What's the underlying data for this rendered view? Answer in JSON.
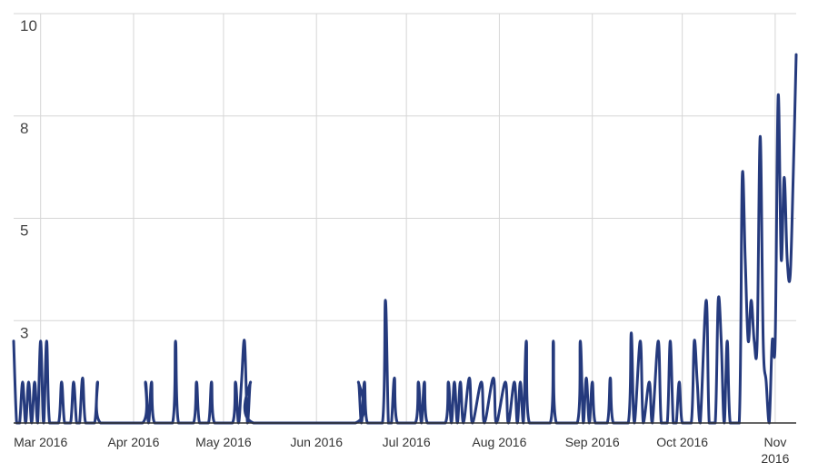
{
  "chart_data": {
    "type": "line",
    "title": "",
    "xlabel": "",
    "ylabel": "",
    "ylim": [
      0,
      10
    ],
    "grid": true,
    "legend": "none",
    "line_color": "#253a7d",
    "grid_color": "#d6d6d6",
    "y_ticks": [
      {
        "value": 0,
        "label": ""
      },
      {
        "value": 2.5,
        "label": "3"
      },
      {
        "value": 5,
        "label": "5"
      },
      {
        "value": 7.5,
        "label": "8"
      },
      {
        "value": 10,
        "label": "10"
      }
    ],
    "x_ticks": [
      {
        "date": "2016-03-01",
        "label": "Mar 2016",
        "label2": ""
      },
      {
        "date": "2016-04-01",
        "label": "Apr 2016",
        "label2": ""
      },
      {
        "date": "2016-05-01",
        "label": "May 2016",
        "label2": ""
      },
      {
        "date": "2016-06-01",
        "label": "Jun 2016",
        "label2": ""
      },
      {
        "date": "2016-07-01",
        "label": "Jul 2016",
        "label2": ""
      },
      {
        "date": "2016-08-01",
        "label": "Aug 2016",
        "label2": ""
      },
      {
        "date": "2016-09-01",
        "label": "Sep 2016",
        "label2": ""
      },
      {
        "date": "2016-10-01",
        "label": "Oct 2016",
        "label2": ""
      },
      {
        "date": "2016-11-01",
        "label": "Nov",
        "label2": "2016"
      }
    ],
    "x_range": [
      "2016-02-21",
      "2016-11-08"
    ],
    "series": [
      {
        "points": [
          [
            "2016-02-21",
            2
          ],
          [
            "2016-02-22",
            0
          ],
          [
            "2016-02-23",
            0
          ],
          [
            "2016-02-24",
            1
          ],
          [
            "2016-02-25",
            0
          ],
          [
            "2016-02-26",
            1
          ],
          [
            "2016-02-27",
            0
          ],
          [
            "2016-02-28",
            1
          ],
          [
            "2016-02-29",
            0
          ],
          [
            "2016-03-01",
            2
          ],
          [
            "2016-03-02",
            0
          ],
          [
            "2016-03-03",
            2
          ],
          [
            "2016-03-04",
            0
          ],
          [
            "2016-03-07",
            0
          ],
          [
            "2016-03-08",
            1
          ],
          [
            "2016-03-09",
            0
          ],
          [
            "2016-03-11",
            0
          ],
          [
            "2016-03-12",
            1
          ],
          [
            "2016-03-13",
            0
          ],
          [
            "2016-03-14",
            0
          ],
          [
            "2016-03-15",
            1.1
          ],
          [
            "2016-03-16",
            0
          ],
          [
            "2016-03-19",
            0
          ],
          [
            "2016-03-20",
            1
          ],
          [
            "2016-03-21",
            0
          ],
          [
            "2016-04-04",
            0
          ],
          [
            "2016-04-05",
            1
          ],
          [
            "2016-04-06",
            0
          ],
          [
            "2016-04-07",
            1
          ],
          [
            "2016-04-08",
            0
          ],
          [
            "2016-04-14",
            0
          ],
          [
            "2016-04-15",
            2
          ],
          [
            "2016-04-16",
            0
          ],
          [
            "2016-04-21",
            0
          ],
          [
            "2016-04-22",
            1
          ],
          [
            "2016-04-23",
            0
          ],
          [
            "2016-04-26",
            0
          ],
          [
            "2016-04-27",
            1
          ],
          [
            "2016-04-28",
            0
          ],
          [
            "2016-05-04",
            0
          ],
          [
            "2016-05-05",
            1
          ],
          [
            "2016-05-06",
            0
          ],
          [
            "2016-05-07",
            1
          ],
          [
            "2016-05-08",
            2
          ],
          [
            "2016-05-09",
            0
          ],
          [
            "2016-05-10",
            1
          ],
          [
            "2016-05-11",
            0
          ],
          [
            "2016-06-14",
            0
          ],
          [
            "2016-06-15",
            1
          ],
          [
            "2016-06-16",
            0
          ],
          [
            "2016-06-17",
            1
          ],
          [
            "2016-06-18",
            0
          ],
          [
            "2016-06-23",
            0
          ],
          [
            "2016-06-24",
            3
          ],
          [
            "2016-06-25",
            0
          ],
          [
            "2016-06-26",
            0
          ],
          [
            "2016-06-27",
            1.1
          ],
          [
            "2016-06-28",
            0
          ],
          [
            "2016-07-04",
            0
          ],
          [
            "2016-07-05",
            1
          ],
          [
            "2016-07-06",
            0
          ],
          [
            "2016-07-07",
            1
          ],
          [
            "2016-07-08",
            0
          ],
          [
            "2016-07-14",
            0
          ],
          [
            "2016-07-15",
            1
          ],
          [
            "2016-07-16",
            0
          ],
          [
            "2016-07-17",
            1
          ],
          [
            "2016-07-18",
            0
          ],
          [
            "2016-07-19",
            1
          ],
          [
            "2016-07-20",
            0
          ],
          [
            "2016-07-22",
            1.1
          ],
          [
            "2016-07-23",
            0
          ],
          [
            "2016-07-26",
            1
          ],
          [
            "2016-07-27",
            0
          ],
          [
            "2016-07-30",
            1.1
          ],
          [
            "2016-07-31",
            0
          ],
          [
            "2016-08-03",
            1
          ],
          [
            "2016-08-04",
            0
          ],
          [
            "2016-08-06",
            1
          ],
          [
            "2016-08-07",
            0
          ],
          [
            "2016-08-08",
            1
          ],
          [
            "2016-08-09",
            0
          ],
          [
            "2016-08-10",
            2
          ],
          [
            "2016-08-11",
            0
          ],
          [
            "2016-08-18",
            0
          ],
          [
            "2016-08-19",
            2
          ],
          [
            "2016-08-20",
            0
          ],
          [
            "2016-08-27",
            0
          ],
          [
            "2016-08-28",
            2
          ],
          [
            "2016-08-29",
            0
          ],
          [
            "2016-08-30",
            1.1
          ],
          [
            "2016-08-31",
            0
          ],
          [
            "2016-09-01",
            1
          ],
          [
            "2016-09-02",
            0
          ],
          [
            "2016-09-06",
            0
          ],
          [
            "2016-09-07",
            1.1
          ],
          [
            "2016-09-08",
            0
          ],
          [
            "2016-09-13",
            0
          ],
          [
            "2016-09-14",
            2.2
          ],
          [
            "2016-09-15",
            0
          ],
          [
            "2016-09-17",
            2
          ],
          [
            "2016-09-18",
            0
          ],
          [
            "2016-09-20",
            1
          ],
          [
            "2016-09-21",
            0
          ],
          [
            "2016-09-23",
            2
          ],
          [
            "2016-09-24",
            0
          ],
          [
            "2016-09-26",
            0
          ],
          [
            "2016-09-27",
            2
          ],
          [
            "2016-09-28",
            0
          ],
          [
            "2016-09-29",
            0
          ],
          [
            "2016-09-30",
            1
          ],
          [
            "2016-10-01",
            0
          ],
          [
            "2016-10-04",
            0
          ],
          [
            "2016-10-05",
            2
          ],
          [
            "2016-10-06",
            1
          ],
          [
            "2016-10-07",
            0
          ],
          [
            "2016-10-09",
            3
          ],
          [
            "2016-10-10",
            0
          ],
          [
            "2016-10-12",
            0
          ],
          [
            "2016-10-13",
            3
          ],
          [
            "2016-10-14",
            2
          ],
          [
            "2016-10-15",
            0
          ],
          [
            "2016-10-16",
            2
          ],
          [
            "2016-10-17",
            0
          ],
          [
            "2016-10-20",
            0
          ],
          [
            "2016-10-21",
            6
          ],
          [
            "2016-10-22",
            4
          ],
          [
            "2016-10-23",
            2
          ],
          [
            "2016-10-24",
            3
          ],
          [
            "2016-10-25",
            2
          ],
          [
            "2016-10-26",
            2
          ],
          [
            "2016-10-27",
            7
          ],
          [
            "2016-10-28",
            2
          ],
          [
            "2016-10-29",
            1
          ],
          [
            "2016-10-30",
            0
          ],
          [
            "2016-10-31",
            2
          ],
          [
            "2016-11-01",
            2
          ],
          [
            "2016-11-02",
            8
          ],
          [
            "2016-11-03",
            4
          ],
          [
            "2016-11-04",
            6
          ],
          [
            "2016-11-05",
            4
          ],
          [
            "2016-11-06",
            3.6
          ],
          [
            "2016-11-07",
            6
          ],
          [
            "2016-11-08",
            9
          ]
        ]
      }
    ]
  }
}
